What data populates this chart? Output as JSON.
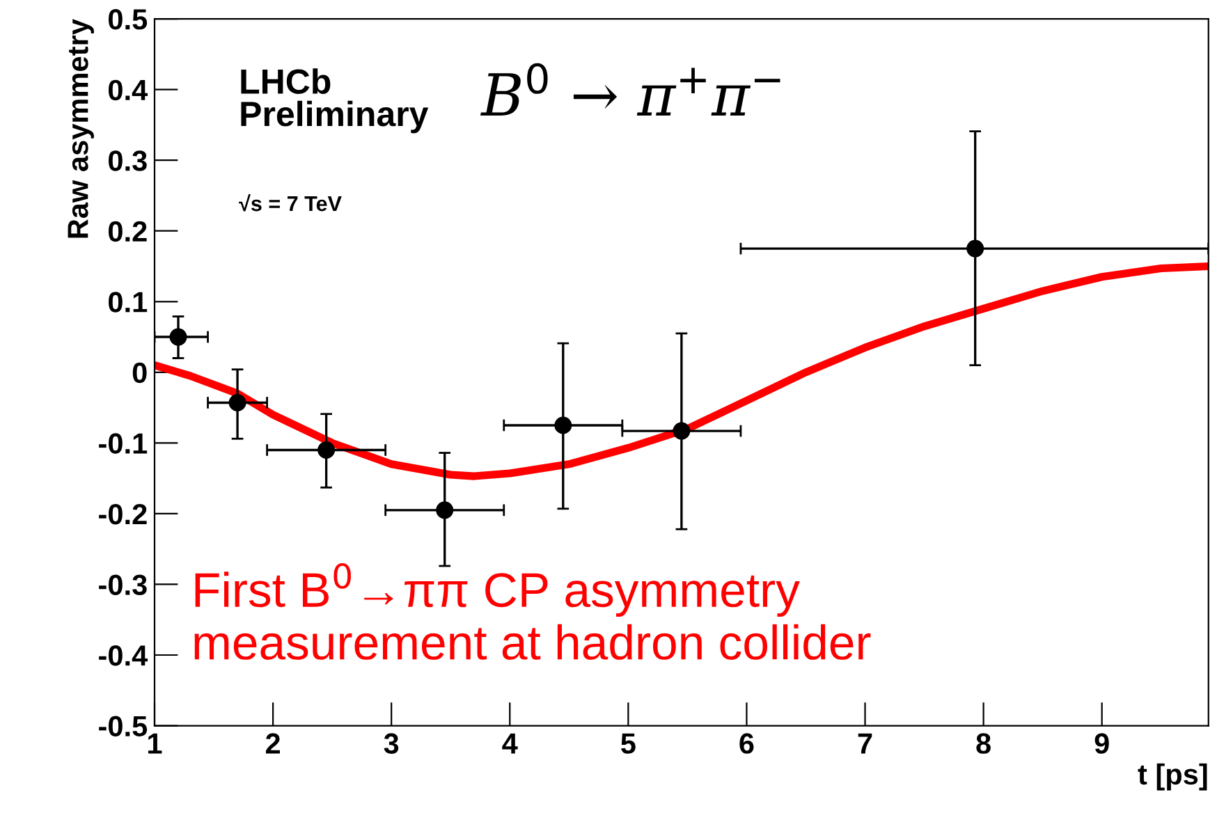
{
  "chart_data": {
    "type": "scatter",
    "xlabel": "t [ps]",
    "ylabel": "Raw asymmetry",
    "xlim": [
      1,
      9.9
    ],
    "xticks": [
      1,
      2,
      3,
      4,
      5,
      6,
      7,
      8,
      9
    ],
    "ylim": [
      -0.5,
      0.5
    ],
    "yticks": [
      -0.5,
      -0.4,
      -0.3,
      -0.2,
      -0.1,
      0,
      0.1,
      0.2,
      0.3,
      0.4,
      0.5
    ],
    "grid": false,
    "legend": false,
    "marker": "circle",
    "annotations": [
      "LHCb\nPreliminary",
      "√s = 7 TeV",
      "B$^{0}$ → π$^{+}$π$^{−}$",
      "First B$^{0}$→ππ CP asymmetry\nmeasurement at hadron collider"
    ],
    "series": [
      {
        "color": "#000000",
        "x": [
          1.2,
          1.7,
          2.45,
          3.45,
          4.45,
          5.45,
          7.93
        ],
        "values": [
          0.05,
          -0.043,
          -0.11,
          -0.195,
          -0.075,
          -0.083,
          0.175
        ],
        "errors": [
          [
            0.02,
            0.079
          ],
          [
            -0.094,
            0.004
          ],
          [
            -0.163,
            -0.059
          ],
          [
            -0.274,
            -0.114
          ],
          [
            -0.193,
            0.041
          ],
          [
            -0.222,
            0.055
          ],
          [
            0.01,
            0.341
          ]
        ],
        "xerrors": [
          [
            1.0,
            1.45
          ],
          [
            1.45,
            1.95
          ],
          [
            1.95,
            2.95
          ],
          [
            2.95,
            3.95
          ],
          [
            3.95,
            4.95
          ],
          [
            4.95,
            5.95
          ],
          [
            5.95,
            9.9
          ]
        ]
      },
      {
        "type": "line",
        "color": "#ff0000",
        "line_style": "solid",
        "marker": "none",
        "x": [
          1,
          1.3,
          1.7,
          2,
          2.5,
          3,
          3.5,
          3.7,
          4,
          4.5,
          5,
          5.5,
          6,
          6.5,
          7,
          7.5,
          8,
          8.5,
          9,
          9.5,
          9.9
        ],
        "values": [
          0.01,
          -0.005,
          -0.03,
          -0.06,
          -0.1,
          -0.13,
          -0.145,
          -0.147,
          -0.143,
          -0.13,
          -0.107,
          -0.08,
          -0.04,
          0.0,
          0.035,
          0.065,
          0.09,
          0.115,
          0.135,
          0.147,
          0.15
        ]
      }
    ]
  }
}
